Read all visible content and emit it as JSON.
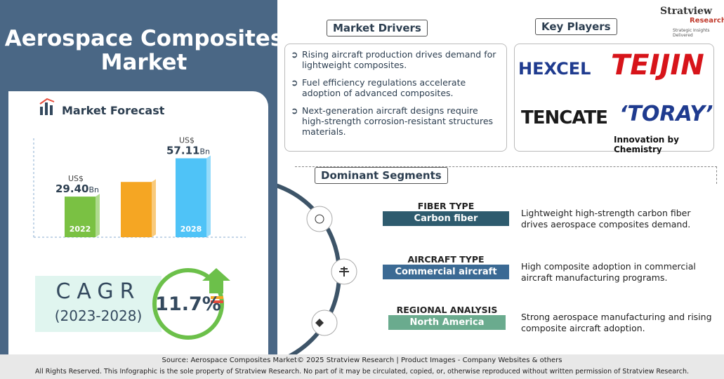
{
  "header": {
    "title": "Aerospace Composites Market",
    "brand": "Stratview",
    "brand_sub": "Research",
    "tagline": "Strategic Insights Delivered"
  },
  "forecast": {
    "title": "Market Forecast"
  },
  "chart_data": {
    "type": "bar",
    "categories": [
      "2022",
      null,
      "2028"
    ],
    "values": [
      29.4,
      40,
      57.11
    ],
    "value_labels": [
      "29.40",
      null,
      "57.11"
    ],
    "value_prefix": "US$",
    "value_unit": "Bn",
    "colors": [
      "#7ac143",
      "#f5a623",
      "#4fc3f7"
    ],
    "ylim": [
      0,
      65
    ]
  },
  "cagr": {
    "label": "CAGR",
    "period": "(2023-2028)",
    "value": "11.7%"
  },
  "drivers": {
    "title": "Market Drivers",
    "items": [
      "Rising aircraft production drives demand for lightweight composites.",
      "Fuel efficiency regulations accelerate adoption of advanced composites.",
      "Next-generation aircraft designs require high-strength corrosion-resistant structures materials."
    ]
  },
  "players": {
    "title": "Key Players",
    "logos": [
      "HEXCEL",
      "TEIJIN",
      "TENCATE",
      "‘TORAY’"
    ],
    "toray_tagline": "Innovation by Chemistry"
  },
  "segments": {
    "title": "Dominant Segments",
    "items": [
      {
        "category": "FIBER TYPE",
        "value": "Carbon fiber",
        "description": "Lightweight high-strength carbon fiber drives aerospace composites demand."
      },
      {
        "category": "AIRCRAFT TYPE",
        "value": "Commercial aircraft",
        "description": "High composite adoption in commercial aircraft manufacturing programs."
      },
      {
        "category": "REGIONAL ANALYSIS",
        "value": "North America",
        "description": "Strong aerospace manufacturing and rising composite aircraft adoption."
      }
    ]
  },
  "footer": {
    "source": "Source:  Aerospace Composites Market© 2025 Stratview Research | Product Images  - Company Websites & others",
    "rights": "All Rights Reserved. This Infographic is the sole property of Stratview Research. No part of it may be circulated, copied, or, otherwise reproduced without written permission of Stratview Research."
  }
}
